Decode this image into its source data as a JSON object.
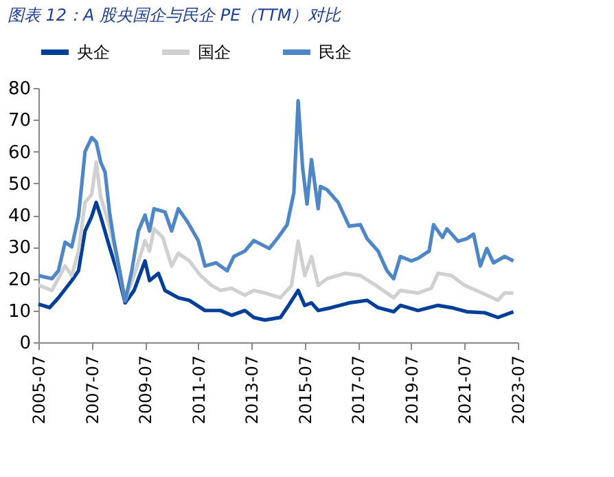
{
  "chart_data": {
    "type": "line",
    "title": "图表 12：A 股央国企与民企 PE（TTM）对比",
    "ylim": [
      0,
      80
    ],
    "yticks": [
      0,
      10,
      20,
      30,
      40,
      50,
      60,
      70,
      80
    ],
    "xlim": [
      "2005-07",
      "2023-07"
    ],
    "xticks": [
      "2005-07",
      "2007-07",
      "2009-07",
      "2011-07",
      "2013-07",
      "2015-07",
      "2017-07",
      "2019-07",
      "2021-07",
      "2023-07"
    ],
    "grid": false,
    "legend": "top",
    "marker": "none",
    "line_style": "solid",
    "series": [
      {
        "name": "央企",
        "color": "#003f98",
        "x": [
          "2005-07",
          "2005-12",
          "2006-04",
          "2006-10",
          "2007-01",
          "2007-04",
          "2007-07",
          "2007-09",
          "2007-11",
          "2008-03",
          "2008-07",
          "2008-10",
          "2009-02",
          "2009-07",
          "2009-09",
          "2010-01",
          "2010-04",
          "2010-10",
          "2011-03",
          "2011-10",
          "2012-05",
          "2012-10",
          "2013-04",
          "2013-08",
          "2014-01",
          "2014-08",
          "2014-11",
          "2015-04",
          "2015-07",
          "2015-10",
          "2016-01",
          "2016-07",
          "2017-03",
          "2017-11",
          "2018-04",
          "2018-11",
          "2019-02",
          "2019-10",
          "2020-07",
          "2021-01",
          "2021-08",
          "2022-04",
          "2022-10",
          "2023-05"
        ],
        "values": [
          12,
          10.9,
          14,
          19.4,
          22.5,
          35,
          39.6,
          44,
          39.6,
          30,
          21,
          12.4,
          16.3,
          25.6,
          19.4,
          21.7,
          16.3,
          14,
          13.2,
          10,
          10,
          8.5,
          10,
          7.8,
          7,
          7.8,
          10.9,
          16.3,
          11.6,
          12.4,
          10,
          10.9,
          12.4,
          13.2,
          10.9,
          9.6,
          11.6,
          10,
          11.6,
          10.9,
          9.6,
          9.3,
          7.8,
          9.6
        ]
      },
      {
        "name": "国企",
        "color": "#d0d0d0",
        "x": [
          "2005-07",
          "2006-01",
          "2006-07",
          "2006-10",
          "2007-01",
          "2007-04",
          "2007-07",
          "2007-09",
          "2007-11",
          "2008-03",
          "2008-07",
          "2008-10",
          "2009-02",
          "2009-07",
          "2009-09",
          "2009-11",
          "2010-03",
          "2010-07",
          "2010-10",
          "2011-03",
          "2011-08",
          "2012-01",
          "2012-05",
          "2012-10",
          "2013-04",
          "2013-08",
          "2014-01",
          "2014-08",
          "2015-01",
          "2015-04",
          "2015-07",
          "2015-10",
          "2016-01",
          "2016-05",
          "2017-01",
          "2017-08",
          "2018-03",
          "2018-11",
          "2019-02",
          "2019-10",
          "2020-04",
          "2020-07",
          "2021-01",
          "2021-07",
          "2022-03",
          "2022-10",
          "2023-01",
          "2023-05"
        ],
        "values": [
          18,
          16.3,
          24,
          21,
          28.7,
          44,
          46.5,
          56.7,
          45.8,
          36.5,
          24,
          13,
          21,
          32,
          28.7,
          35.7,
          33,
          24,
          28,
          25.6,
          21,
          17.9,
          16.3,
          17,
          14.8,
          16.3,
          15.5,
          14,
          17.9,
          31.8,
          21,
          27,
          17.9,
          20,
          21.7,
          21,
          17.9,
          14,
          16.3,
          15.5,
          17,
          21.7,
          21,
          17.9,
          15.5,
          13.2,
          15.5,
          15.5
        ]
      },
      {
        "name": "民企",
        "color": "#4f86c6",
        "x": [
          "2005-07",
          "2006-01",
          "2006-04",
          "2006-07",
          "2006-10",
          "2007-01",
          "2007-04",
          "2007-07",
          "2007-09",
          "2007-11",
          "2008-01",
          "2008-03",
          "2008-05",
          "2008-08",
          "2008-10",
          "2009-01",
          "2009-04",
          "2009-07",
          "2009-09",
          "2009-11",
          "2010-04",
          "2010-07",
          "2010-10",
          "2011-02",
          "2011-07",
          "2011-10",
          "2012-03",
          "2012-08",
          "2012-11",
          "2013-04",
          "2013-08",
          "2014-03",
          "2014-07",
          "2014-11",
          "2015-02",
          "2015-04",
          "2015-06",
          "2015-08",
          "2015-10",
          "2016-01",
          "2016-02",
          "2016-05",
          "2016-10",
          "2017-03",
          "2017-08",
          "2017-11",
          "2018-04",
          "2018-08",
          "2018-11",
          "2019-02",
          "2019-07",
          "2019-10",
          "2020-03",
          "2020-05",
          "2020-09",
          "2020-11",
          "2021-04",
          "2021-08",
          "2021-11",
          "2022-02",
          "2022-05",
          "2022-08",
          "2023-01",
          "2023-05"
        ],
        "values": [
          21,
          20,
          22.5,
          31.5,
          30,
          39.6,
          60,
          64.4,
          63,
          56.7,
          53.5,
          41,
          32,
          21,
          13,
          22.5,
          35,
          40,
          35,
          42,
          41,
          35,
          42,
          38,
          32,
          24,
          25,
          22.5,
          27,
          28.7,
          32,
          29.5,
          33,
          37,
          47,
          76,
          55,
          43.5,
          57.5,
          42,
          49,
          48,
          44,
          36.5,
          37,
          32.6,
          28.7,
          22.5,
          20,
          27,
          25.6,
          26.4,
          28.7,
          37,
          33,
          35.7,
          31.8,
          32.6,
          34,
          24,
          29.5,
          25,
          27,
          25.6
        ]
      }
    ]
  }
}
